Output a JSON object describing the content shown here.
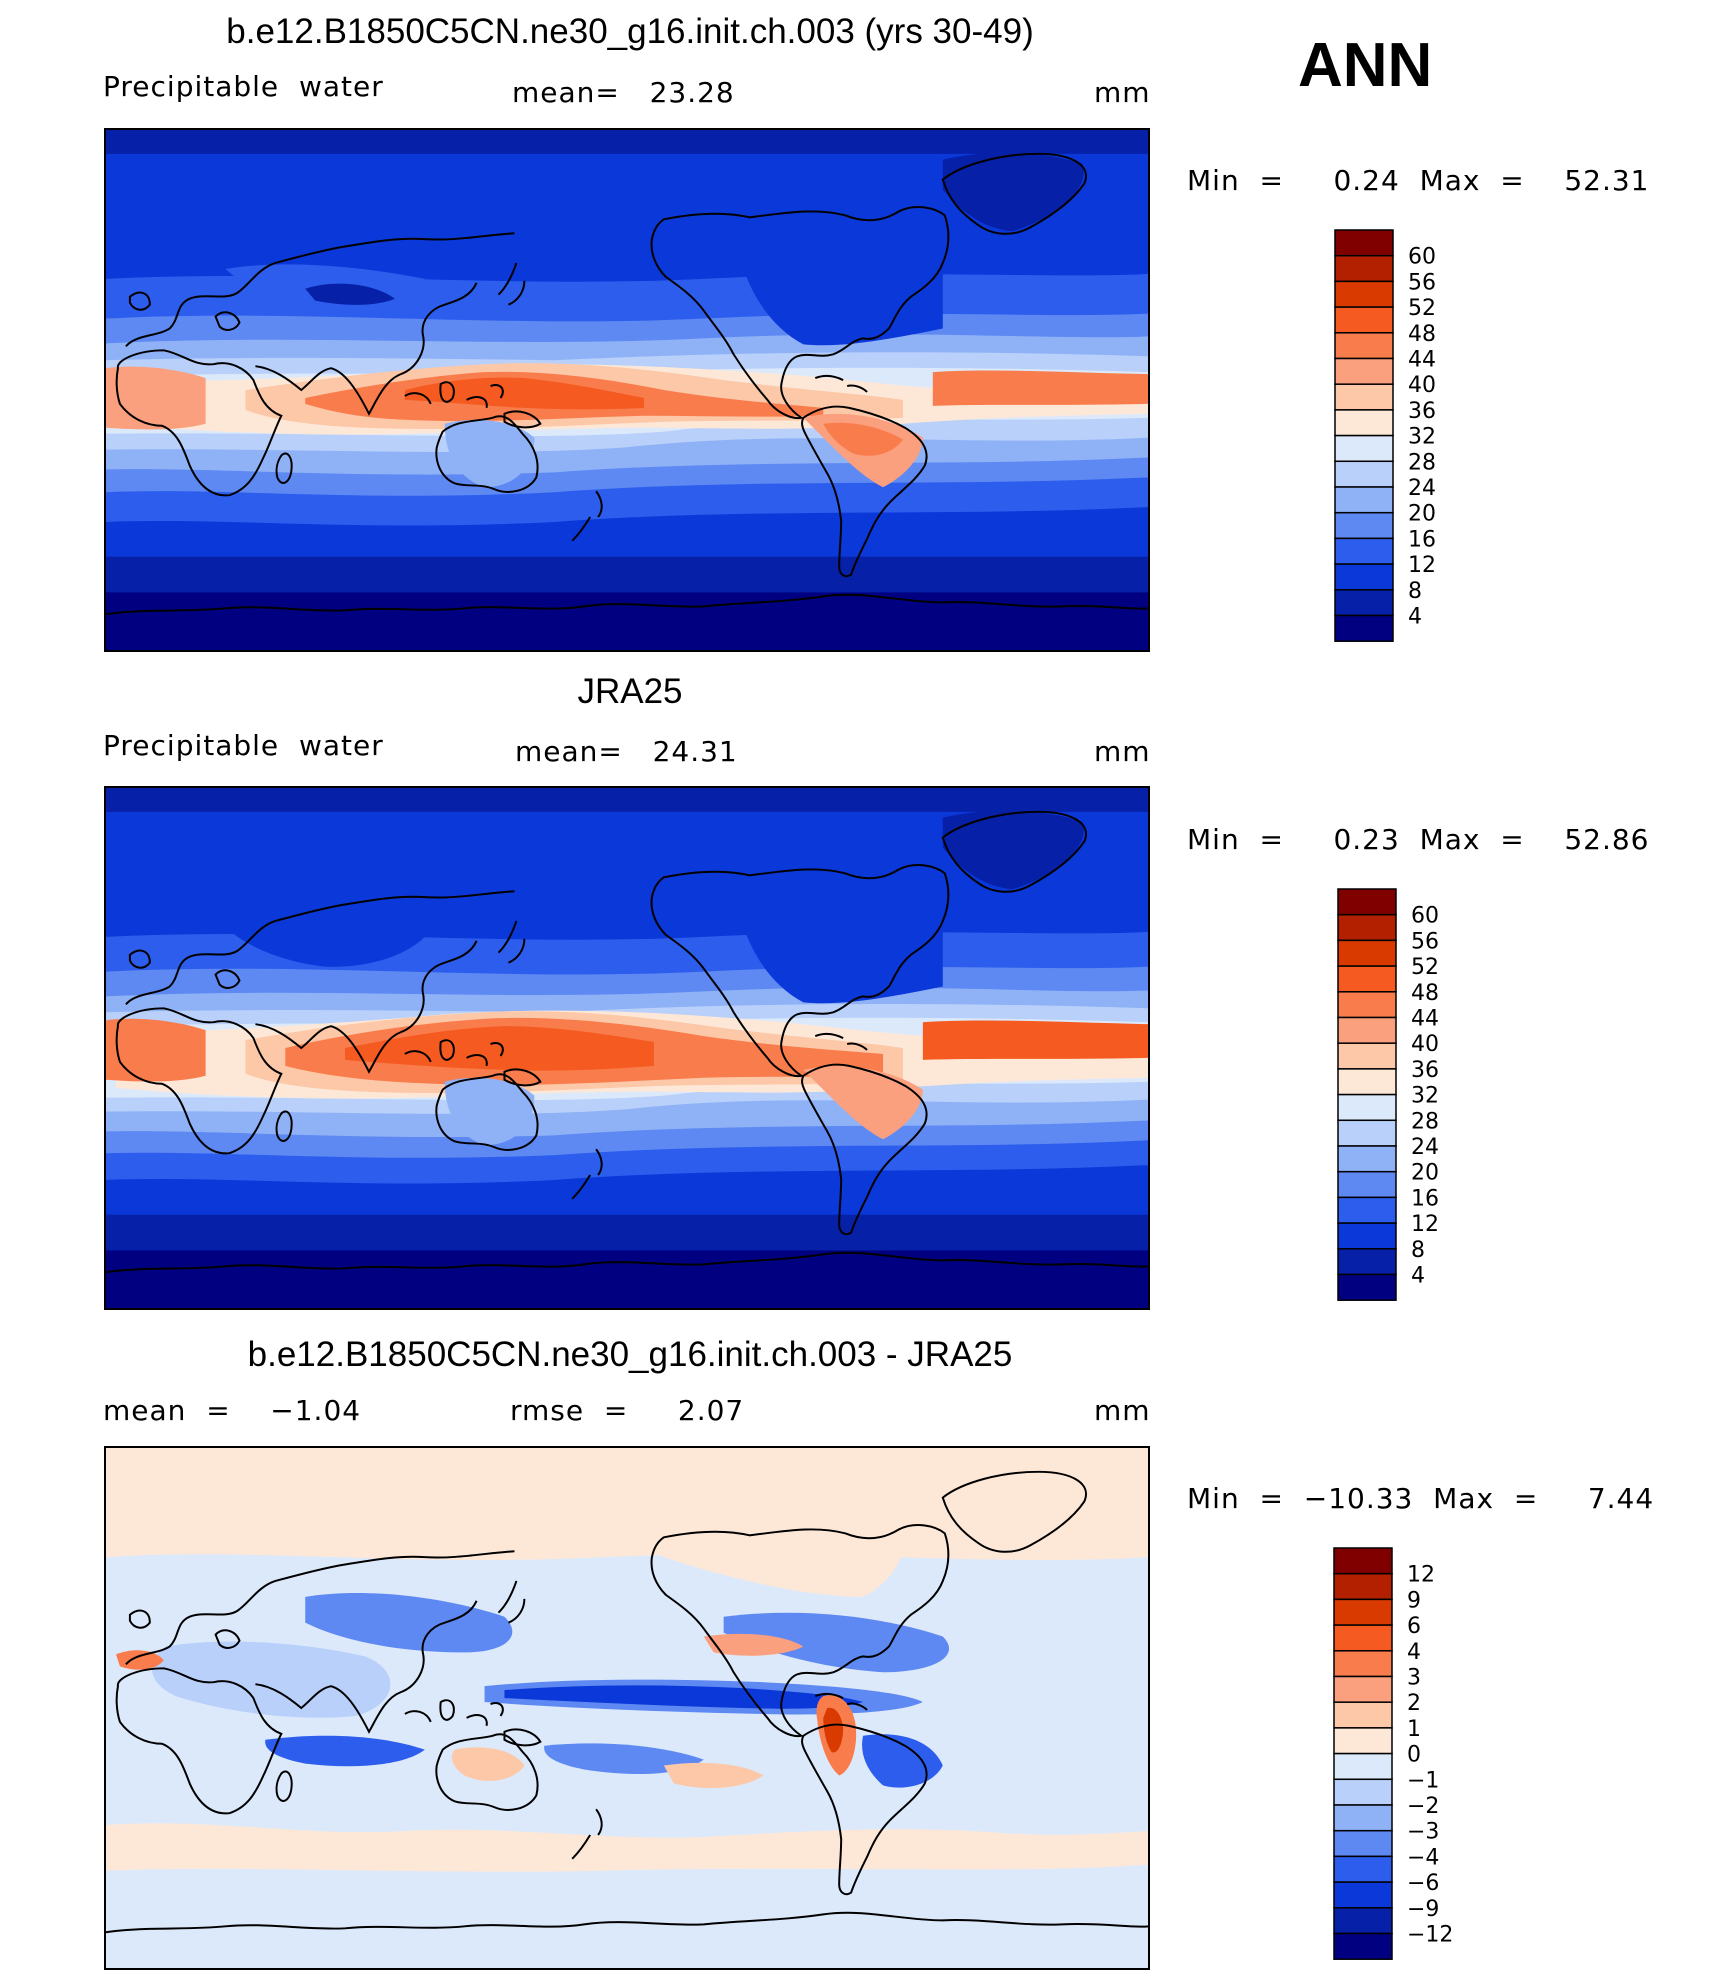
{
  "season_label": "ANN",
  "units": "mm",
  "panels": [
    {
      "title": "b.e12.B1850C5CN.ne30_g16.init.ch.003 (yrs 30-49)",
      "left_label": "Precipitable  water",
      "stat_text": "mean=   23.28",
      "units": "mm",
      "minmax_text": "Min  =     0.24  Max  =    52.31",
      "type": "field"
    },
    {
      "title": "JRA25",
      "left_label": "Precipitable  water",
      "stat_text": "mean=   24.31",
      "units": "mm",
      "minmax_text": "Min  =     0.23  Max  =    52.86",
      "type": "field"
    },
    {
      "title": "b.e12.B1850C5CN.ne30_g16.init.ch.003 - JRA25",
      "left_label": "mean  =    −1.04",
      "stat_text": "rmse  =     2.07",
      "units": "mm",
      "minmax_text": "Min  =  −10.33  Max  =     7.44",
      "type": "difference"
    }
  ],
  "colorbars": {
    "field": {
      "levels": [
        "60",
        "56",
        "52",
        "48",
        "44",
        "40",
        "36",
        "32",
        "28",
        "24",
        "20",
        "16",
        "12",
        "8",
        "4"
      ],
      "colors": [
        "#800000",
        "#b22000",
        "#d93a00",
        "#f55a20",
        "#f97c4c",
        "#fba07e",
        "#fcc8a8",
        "#fde8d8",
        "#dce9fb",
        "#b8d0fa",
        "#8fb2f7",
        "#5e89f2",
        "#2d5ded",
        "#0b38d8",
        "#0620a8",
        "#000080"
      ]
    },
    "difference": {
      "levels": [
        "12",
        "9",
        "6",
        "4",
        "3",
        "2",
        "1",
        "0",
        "−1",
        "−2",
        "−3",
        "−4",
        "−6",
        "−9",
        "−12"
      ],
      "colors": [
        "#800000",
        "#b22000",
        "#d93a00",
        "#f55a20",
        "#f97c4c",
        "#fba07e",
        "#fcc8a8",
        "#fde8d8",
        "#dce9fb",
        "#b8d0fa",
        "#8fb2f7",
        "#5e89f2",
        "#2d5ded",
        "#0b38d8",
        "#0620a8",
        "#000080"
      ]
    }
  }
}
